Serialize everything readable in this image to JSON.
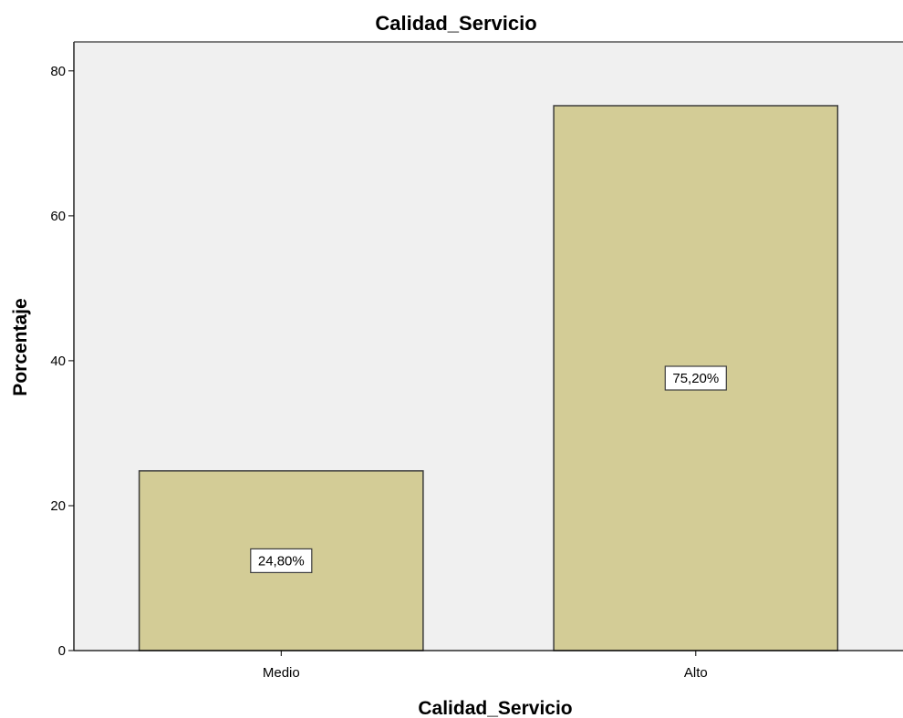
{
  "chart_data": {
    "type": "bar",
    "title": "Calidad_Servicio",
    "xlabel": "Calidad_Servicio",
    "ylabel": "Porcentaje",
    "categories": [
      "Medio",
      "Alto"
    ],
    "values": [
      24.8,
      75.2
    ],
    "data_labels": [
      "24,80%",
      "75,20%"
    ],
    "ylim": [
      0,
      84
    ],
    "y_ticks": [
      0,
      20,
      40,
      60,
      80
    ],
    "grid": false,
    "legend": "none",
    "colors": {
      "bar_fill": "#d3cc96",
      "bar_stroke": "#3c3c3c",
      "plot_background": "#f0f0f0",
      "axis": "#000000"
    }
  }
}
